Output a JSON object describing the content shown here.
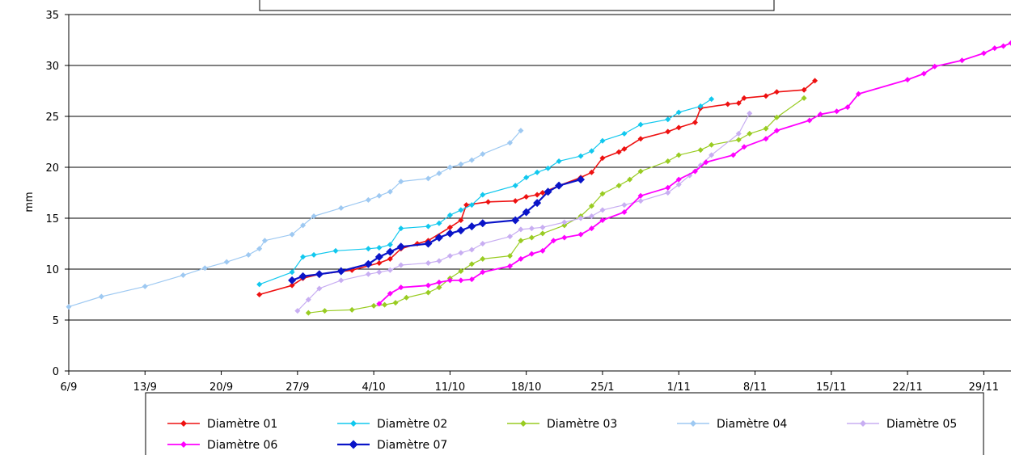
{
  "chart_data": {
    "type": "line",
    "title": "",
    "xlabel": "",
    "ylabel": "mm",
    "ylim": [
      0,
      35
    ],
    "yticks": [
      0,
      5,
      10,
      15,
      20,
      25,
      30,
      35
    ],
    "xticks": [
      {
        "x": 0,
        "label": "6/9"
      },
      {
        "x": 7,
        "label": "13/9"
      },
      {
        "x": 14,
        "label": "20/9"
      },
      {
        "x": 21,
        "label": "27/9"
      },
      {
        "x": 28,
        "label": "4/10"
      },
      {
        "x": 35,
        "label": "11/10"
      },
      {
        "x": 42,
        "label": "18/10"
      },
      {
        "x": 49,
        "label": "25/1"
      },
      {
        "x": 56,
        "label": "1/11"
      },
      {
        "x": 63,
        "label": "8/11"
      },
      {
        "x": 70,
        "label": "15/11"
      },
      {
        "x": 77,
        "label": "22/11"
      },
      {
        "x": 84,
        "label": "29/11"
      }
    ],
    "xlim": [
      0,
      86.5
    ],
    "grid": "horizontal",
    "legend_position": "bottom",
    "series": [
      {
        "name": "Diamètre 01",
        "color": "#ee1111",
        "marker_size": 3.5,
        "line_width": 1.6,
        "points": [
          [
            17.5,
            7.5
          ],
          [
            20.5,
            8.4
          ],
          [
            21.5,
            9.1
          ],
          [
            23,
            9.5
          ],
          [
            26,
            9.9
          ],
          [
            28.5,
            10.6
          ],
          [
            29.5,
            11.0
          ],
          [
            30.5,
            12.0
          ],
          [
            32,
            12.5
          ],
          [
            33,
            12.8
          ],
          [
            35,
            14.1
          ],
          [
            36,
            14.8
          ],
          [
            36.5,
            16.3
          ],
          [
            38.5,
            16.6
          ],
          [
            41,
            16.7
          ],
          [
            42,
            17.1
          ],
          [
            43,
            17.3
          ],
          [
            43.5,
            17.5
          ],
          [
            45,
            18.2
          ],
          [
            47,
            19.0
          ],
          [
            48,
            19.5
          ],
          [
            49,
            20.9
          ],
          [
            50.5,
            21.5
          ],
          [
            51,
            21.8
          ],
          [
            52.5,
            22.8
          ],
          [
            55,
            23.5
          ],
          [
            56,
            23.9
          ],
          [
            57.5,
            24.4
          ],
          [
            58,
            25.8
          ],
          [
            60.5,
            26.2
          ],
          [
            61.5,
            26.3
          ],
          [
            62,
            26.8
          ],
          [
            64,
            27.0
          ],
          [
            65,
            27.4
          ],
          [
            67.5,
            27.6
          ],
          [
            68.5,
            28.5
          ]
        ]
      },
      {
        "name": "Diamètre 02",
        "color": "#11c8ee",
        "marker_size": 3.5,
        "line_width": 1.2,
        "points": [
          [
            17.5,
            8.5
          ],
          [
            20.5,
            9.7
          ],
          [
            21.5,
            11.2
          ],
          [
            22.5,
            11.4
          ],
          [
            24.5,
            11.8
          ],
          [
            27.5,
            12.0
          ],
          [
            28.5,
            12.1
          ],
          [
            29.5,
            12.4
          ],
          [
            30.5,
            14.0
          ],
          [
            33,
            14.2
          ],
          [
            34,
            14.5
          ],
          [
            35,
            15.3
          ],
          [
            36,
            15.8
          ],
          [
            37,
            16.3
          ],
          [
            38,
            17.3
          ],
          [
            41,
            18.2
          ],
          [
            42,
            19.0
          ],
          [
            43,
            19.5
          ],
          [
            44,
            19.9
          ],
          [
            45,
            20.6
          ],
          [
            47,
            21.1
          ],
          [
            48,
            21.6
          ],
          [
            49,
            22.6
          ],
          [
            51,
            23.3
          ],
          [
            52.5,
            24.2
          ],
          [
            55,
            24.7
          ],
          [
            56,
            25.4
          ],
          [
            58,
            26.0
          ],
          [
            59,
            26.7
          ]
        ]
      },
      {
        "name": "Diamètre 03",
        "color": "#99cc22",
        "marker_size": 3.5,
        "line_width": 1.2,
        "points": [
          [
            22,
            5.7
          ],
          [
            23.5,
            5.9
          ],
          [
            26,
            6.0
          ],
          [
            28,
            6.4
          ],
          [
            29,
            6.5
          ],
          [
            30,
            6.7
          ],
          [
            31,
            7.2
          ],
          [
            33,
            7.7
          ],
          [
            34,
            8.2
          ],
          [
            35,
            9.1
          ],
          [
            36,
            9.8
          ],
          [
            37,
            10.5
          ],
          [
            38,
            11.0
          ],
          [
            40.5,
            11.3
          ],
          [
            41.5,
            12.8
          ],
          [
            42.5,
            13.1
          ],
          [
            43.5,
            13.5
          ],
          [
            45.5,
            14.3
          ],
          [
            47,
            15.2
          ],
          [
            48,
            16.2
          ],
          [
            49,
            17.4
          ],
          [
            50.5,
            18.2
          ],
          [
            51.5,
            18.8
          ],
          [
            52.5,
            19.6
          ],
          [
            55,
            20.6
          ],
          [
            56,
            21.2
          ],
          [
            58,
            21.7
          ],
          [
            59,
            22.2
          ],
          [
            61.5,
            22.7
          ],
          [
            62.5,
            23.3
          ],
          [
            64,
            23.8
          ],
          [
            65,
            24.9
          ],
          [
            67.5,
            26.8
          ]
        ]
      },
      {
        "name": "Diamètre 04",
        "color": "#9ec9f2",
        "marker_size": 3.5,
        "line_width": 1.2,
        "points": [
          [
            0,
            6.3
          ],
          [
            3,
            7.3
          ],
          [
            7,
            8.3
          ],
          [
            10.5,
            9.4
          ],
          [
            12.5,
            10.1
          ],
          [
            14.5,
            10.7
          ],
          [
            16.5,
            11.4
          ],
          [
            17.5,
            12.0
          ],
          [
            18,
            12.8
          ],
          [
            20.5,
            13.4
          ],
          [
            21.5,
            14.3
          ],
          [
            22.5,
            15.2
          ],
          [
            25,
            16.0
          ],
          [
            27.5,
            16.8
          ],
          [
            28.5,
            17.2
          ],
          [
            29.5,
            17.6
          ],
          [
            30.5,
            18.6
          ],
          [
            33,
            18.9
          ],
          [
            34,
            19.4
          ],
          [
            35,
            20.0
          ],
          [
            36,
            20.3
          ],
          [
            37,
            20.7
          ],
          [
            38,
            21.3
          ],
          [
            40.5,
            22.4
          ],
          [
            41.5,
            23.6
          ]
        ]
      },
      {
        "name": "Diamètre 05",
        "color": "#c8aef2",
        "marker_size": 3.5,
        "line_width": 1.2,
        "points": [
          [
            21,
            5.9
          ],
          [
            22,
            7.0
          ],
          [
            23,
            8.1
          ],
          [
            25,
            8.9
          ],
          [
            27.5,
            9.5
          ],
          [
            28.5,
            9.7
          ],
          [
            29.5,
            9.9
          ],
          [
            30.5,
            10.4
          ],
          [
            33,
            10.6
          ],
          [
            34,
            10.8
          ],
          [
            35,
            11.3
          ],
          [
            36,
            11.6
          ],
          [
            37,
            11.9
          ],
          [
            38,
            12.5
          ],
          [
            40.5,
            13.2
          ],
          [
            41.5,
            13.9
          ],
          [
            42.5,
            14.0
          ],
          [
            43.5,
            14.1
          ],
          [
            45.5,
            14.6
          ],
          [
            47,
            15.0
          ],
          [
            48,
            15.2
          ],
          [
            49,
            15.8
          ],
          [
            51,
            16.3
          ],
          [
            52.5,
            16.7
          ],
          [
            55,
            17.5
          ],
          [
            56,
            18.3
          ],
          [
            57,
            19.2
          ],
          [
            58,
            20.2
          ],
          [
            59,
            21.2
          ],
          [
            61.5,
            23.3
          ],
          [
            62.5,
            25.3
          ]
        ]
      },
      {
        "name": "Diamètre 06",
        "color": "#ff00ff",
        "marker_size": 3.5,
        "line_width": 1.8,
        "points": [
          [
            28.5,
            6.6
          ],
          [
            29.5,
            7.6
          ],
          [
            30.5,
            8.2
          ],
          [
            33,
            8.4
          ],
          [
            34,
            8.7
          ],
          [
            35,
            8.9
          ],
          [
            36,
            8.9
          ],
          [
            37,
            9.0
          ],
          [
            38,
            9.7
          ],
          [
            40.5,
            10.3
          ],
          [
            41.5,
            11.0
          ],
          [
            42.5,
            11.5
          ],
          [
            43.5,
            11.8
          ],
          [
            44.5,
            12.8
          ],
          [
            45.5,
            13.1
          ],
          [
            47,
            13.4
          ],
          [
            48,
            14.0
          ],
          [
            49,
            14.8
          ],
          [
            51,
            15.6
          ],
          [
            52.5,
            17.2
          ],
          [
            55,
            18.0
          ],
          [
            56,
            18.8
          ],
          [
            57.5,
            19.6
          ],
          [
            58.5,
            20.5
          ],
          [
            61,
            21.2
          ],
          [
            62,
            22.0
          ],
          [
            64,
            22.8
          ],
          [
            65,
            23.6
          ],
          [
            68,
            24.6
          ],
          [
            69,
            25.2
          ],
          [
            70.5,
            25.5
          ],
          [
            71.5,
            25.9
          ],
          [
            72.5,
            27.2
          ],
          [
            77,
            28.6
          ],
          [
            78.5,
            29.2
          ],
          [
            79.5,
            29.9
          ],
          [
            82,
            30.5
          ],
          [
            84,
            31.2
          ],
          [
            85,
            31.7
          ],
          [
            85.8,
            31.9
          ],
          [
            86.5,
            32.2
          ]
        ]
      },
      {
        "name": "Diamètre 07",
        "color": "#0a14c8",
        "marker_size": 5,
        "line_width": 2.2,
        "points": [
          [
            20.5,
            8.9
          ],
          [
            21.5,
            9.3
          ],
          [
            23,
            9.5
          ],
          [
            25,
            9.8
          ],
          [
            27.5,
            10.5
          ],
          [
            28.5,
            11.2
          ],
          [
            29.5,
            11.7
          ],
          [
            30.5,
            12.2
          ],
          [
            33,
            12.5
          ],
          [
            34,
            13.1
          ],
          [
            35,
            13.5
          ],
          [
            36,
            13.8
          ],
          [
            37,
            14.2
          ],
          [
            38,
            14.5
          ],
          [
            41,
            14.8
          ],
          [
            42,
            15.6
          ],
          [
            43,
            16.5
          ],
          [
            44,
            17.6
          ],
          [
            45,
            18.2
          ],
          [
            47,
            18.8
          ]
        ]
      }
    ]
  },
  "legend": {
    "rows": [
      [
        "Diamètre 01",
        "Diamètre 02",
        "Diamètre 03",
        "Diamètre 04",
        "Diamètre 05"
      ],
      [
        "Diamètre 06",
        "Diamètre 07"
      ]
    ]
  }
}
